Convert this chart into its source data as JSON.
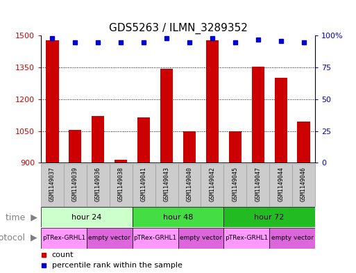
{
  "title": "GDS5263 / ILMN_3289352",
  "samples": [
    "GSM1149037",
    "GSM1149039",
    "GSM1149036",
    "GSM1149038",
    "GSM1149041",
    "GSM1149043",
    "GSM1149040",
    "GSM1149042",
    "GSM1149045",
    "GSM1149047",
    "GSM1149044",
    "GSM1149046"
  ],
  "counts": [
    1480,
    1055,
    1120,
    915,
    1115,
    1345,
    1050,
    1480,
    1050,
    1355,
    1300,
    1095
  ],
  "percentiles": [
    98,
    95,
    95,
    95,
    95,
    98,
    95,
    98,
    95,
    97,
    96,
    95
  ],
  "bar_color": "#cc0000",
  "dot_color": "#0000cc",
  "ylim_left": [
    900,
    1500
  ],
  "ylim_right": [
    0,
    100
  ],
  "yticks_left": [
    900,
    1050,
    1200,
    1350,
    1500
  ],
  "yticks_right": [
    0,
    25,
    50,
    75,
    100
  ],
  "time_groups": [
    {
      "label": "hour 24",
      "start": 0,
      "end": 4,
      "color": "#ccffcc"
    },
    {
      "label": "hour 48",
      "start": 4,
      "end": 8,
      "color": "#44dd44"
    },
    {
      "label": "hour 72",
      "start": 8,
      "end": 12,
      "color": "#22bb22"
    }
  ],
  "protocol_groups": [
    {
      "label": "pTRex-GRHL1",
      "start": 0,
      "end": 2,
      "color": "#ff99ff"
    },
    {
      "label": "empty vector",
      "start": 2,
      "end": 4,
      "color": "#dd66dd"
    },
    {
      "label": "pTRex-GRHL1",
      "start": 4,
      "end": 6,
      "color": "#ff99ff"
    },
    {
      "label": "empty vector",
      "start": 6,
      "end": 8,
      "color": "#dd66dd"
    },
    {
      "label": "pTRex-GRHL1",
      "start": 8,
      "end": 10,
      "color": "#ff99ff"
    },
    {
      "label": "empty vector",
      "start": 10,
      "end": 12,
      "color": "#dd66dd"
    }
  ],
  "sample_bg_color": "#cccccc",
  "sample_border_color": "#999999",
  "label_time": "time",
  "label_protocol": "protocol",
  "legend_count_label": "count",
  "legend_percentile_label": "percentile rank within the sample",
  "title_fontsize": 11,
  "axis_fontsize": 8,
  "sample_fontsize": 6,
  "bar_fontsize": 8
}
